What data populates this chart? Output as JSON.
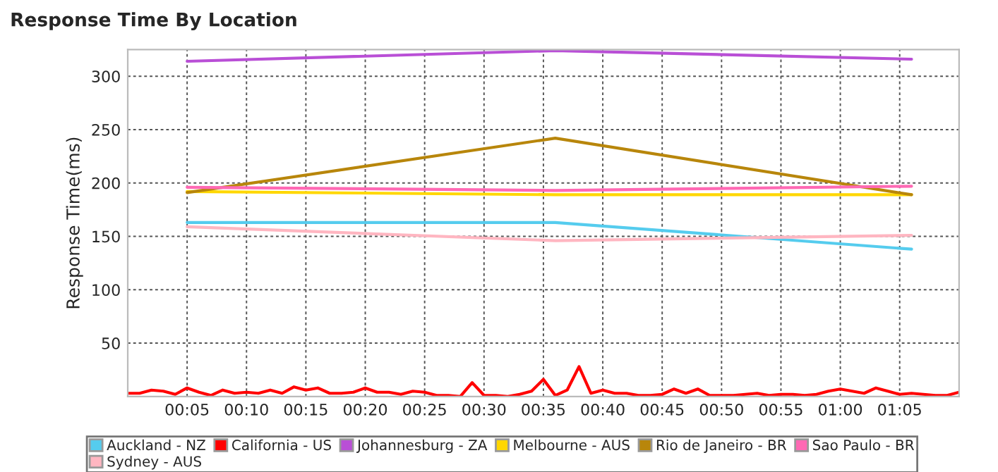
{
  "chart_data": {
    "type": "line",
    "title": "Response Time By Location",
    "ylabel": "Response Time(ms)",
    "xlim": [
      0,
      70
    ],
    "ylim": [
      0,
      325
    ],
    "xticks": [
      {
        "value": 5,
        "label": "00:05"
      },
      {
        "value": 10,
        "label": "00:10"
      },
      {
        "value": 15,
        "label": "00:15"
      },
      {
        "value": 20,
        "label": "00:20"
      },
      {
        "value": 25,
        "label": "00:25"
      },
      {
        "value": 30,
        "label": "00:30"
      },
      {
        "value": 35,
        "label": "00:35"
      },
      {
        "value": 40,
        "label": "00:40"
      },
      {
        "value": 45,
        "label": "00:45"
      },
      {
        "value": 50,
        "label": "00:50"
      },
      {
        "value": 55,
        "label": "00:55"
      },
      {
        "value": 60,
        "label": "01:00"
      },
      {
        "value": 65,
        "label": "01:05"
      }
    ],
    "yticks": [
      50,
      100,
      150,
      200,
      250,
      300
    ],
    "grid": true,
    "legend": "bottom",
    "line_style": "solid",
    "marker": "none",
    "series": [
      {
        "name": "Auckland - NZ",
        "color": "#55ccee",
        "x": [
          5,
          36,
          66
        ],
        "values": [
          163,
          163,
          138
        ]
      },
      {
        "name": "California - US",
        "color": "#ff0000",
        "x": [
          0,
          1,
          2,
          3,
          4,
          5,
          6,
          7,
          8,
          9,
          10,
          11,
          12,
          13,
          14,
          15,
          16,
          17,
          18,
          19,
          20,
          21,
          22,
          23,
          24,
          25,
          26,
          27,
          28,
          29,
          30,
          31,
          32,
          33,
          34,
          35,
          36,
          37,
          38,
          39,
          40,
          41,
          42,
          43,
          44,
          45,
          46,
          47,
          48,
          49,
          50,
          51,
          52,
          53,
          54,
          55,
          56,
          57,
          58,
          59,
          60,
          61,
          62,
          63,
          64,
          65,
          66,
          67,
          68,
          69,
          70
        ],
        "values": [
          3,
          3,
          6,
          5,
          2,
          8,
          4,
          1,
          6,
          3,
          4,
          3,
          6,
          3,
          9,
          6,
          8,
          3,
          3,
          4,
          8,
          4,
          4,
          2,
          5,
          4,
          1,
          1,
          0,
          13,
          1,
          1,
          0,
          2,
          5,
          16,
          1,
          6,
          28,
          3,
          6,
          3,
          3,
          1,
          1,
          2,
          7,
          3,
          7,
          1,
          1,
          1,
          2,
          3,
          1,
          2,
          2,
          1,
          2,
          5,
          7,
          5,
          3,
          8,
          5,
          2,
          3,
          2,
          1,
          1,
          4
        ]
      },
      {
        "name": "Johannesburg - ZA",
        "color": "#b94fd6",
        "x": [
          5,
          36,
          66
        ],
        "values": [
          314,
          324,
          316
        ]
      },
      {
        "name": "Melbourne - AUS",
        "color": "#ffd700",
        "x": [
          5,
          36,
          66
        ],
        "values": [
          192,
          189,
          189
        ]
      },
      {
        "name": "Rio de Janeiro - BR",
        "color": "#b8860b",
        "x": [
          5,
          36,
          66
        ],
        "values": [
          191,
          242,
          189
        ]
      },
      {
        "name": "Sao Paulo - BR",
        "color": "#ff69b4",
        "x": [
          5,
          36,
          66
        ],
        "values": [
          196,
          193,
          197
        ]
      },
      {
        "name": "Sydney - AUS",
        "color": "#ffb6c1",
        "x": [
          5,
          36,
          66
        ],
        "values": [
          159,
          146,
          151
        ]
      }
    ]
  }
}
